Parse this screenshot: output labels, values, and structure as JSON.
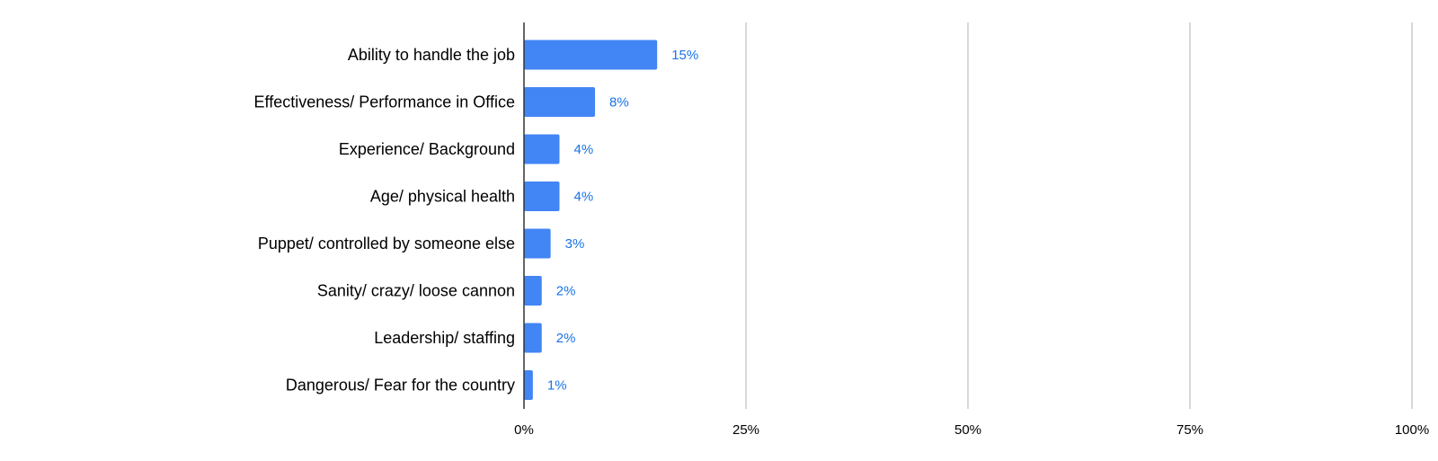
{
  "chart_data": {
    "type": "bar",
    "orientation": "horizontal",
    "title": "",
    "xlabel": "",
    "ylabel": "",
    "categories": [
      "Ability to handle the job",
      "Effectiveness/ Performance in Office",
      "Experience/ Background",
      "Age/ physical health",
      "Puppet/ controlled by someone else",
      "Sanity/ crazy/ loose cannon",
      "Leadership/ staffing",
      "Dangerous/ Fear for the country"
    ],
    "values": [
      15,
      8,
      4,
      4,
      3,
      2,
      2,
      1
    ],
    "value_labels": [
      "15%",
      "8%",
      "4%",
      "4%",
      "3%",
      "2%",
      "2%",
      "1%"
    ],
    "xlim": [
      0,
      100
    ],
    "x_ticks": [
      0,
      25,
      50,
      75,
      100
    ],
    "x_tick_labels": [
      "0%",
      "25%",
      "50%",
      "75%",
      "100%"
    ],
    "grid": "vertical",
    "legend": "none",
    "colors": {
      "bar": "#4285f4",
      "data_label": "#1a73e8",
      "grid": "#cccccc",
      "axis": "#333333"
    }
  }
}
